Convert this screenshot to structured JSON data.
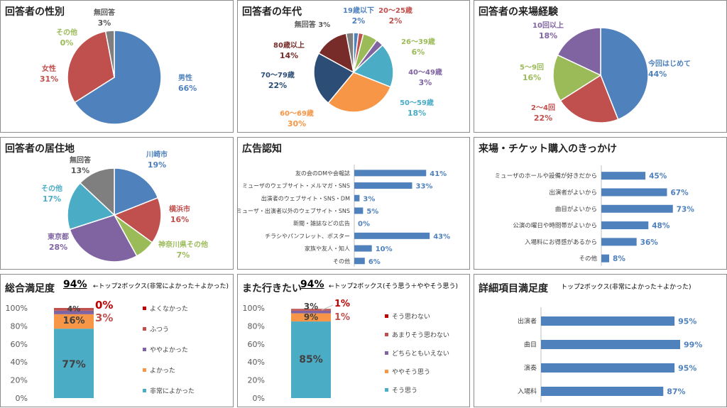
{
  "colors": {
    "blue": "#4f81bd",
    "red": "#c0504d",
    "green": "#9bbb59",
    "purple": "#8064a2",
    "teal": "#4bacc6",
    "orange": "#f79646",
    "navy": "#2c4d75",
    "maroon": "#772c2a",
    "gray": "#7f7f7f",
    "bar": "#4f81bd"
  },
  "titles": {
    "gender": "回答者の性別",
    "age": "回答者の年代",
    "visits": "回答者の来場経験",
    "residence": "回答者の居住地",
    "ad": "広告認知",
    "reason": "来場・チケット購入のきっかけ",
    "overall": "総合満足度",
    "again": "また行きたい",
    "detail": "詳細項目満足度"
  },
  "overall_header": {
    "top2": "94%",
    "note": "←トップ2ボックス(非常によかった＋よかった)"
  },
  "again_header": {
    "top2": "94%",
    "note": "←トップ2ボックス(そう思う＋ややそう思う)"
  },
  "detail_header": {
    "note": "トップ2ボックス(非常によかった＋よかった)"
  },
  "chart_data": [
    {
      "id": "gender",
      "type": "pie",
      "labels": [
        "男性",
        "女性",
        "その他",
        "無回答"
      ],
      "values": [
        66,
        31,
        0,
        3
      ],
      "value_labels": [
        "66%",
        "31%",
        "0%",
        "3%"
      ],
      "colors": [
        "blue",
        "red",
        "green",
        "gray"
      ]
    },
    {
      "id": "age",
      "type": "pie",
      "labels": [
        "19歳以下",
        "20～25歳",
        "26～39歳",
        "40～49歳",
        "50～59歳",
        "60～69歳",
        "70～79歳",
        "80歳以上",
        "無回答"
      ],
      "values": [
        2,
        2,
        6,
        3,
        18,
        30,
        22,
        14,
        3
      ],
      "value_labels": [
        "2%",
        "2%",
        "6%",
        "3%",
        "18%",
        "30%",
        "22%",
        "14%",
        "3%"
      ],
      "colors": [
        "blue",
        "red",
        "green",
        "purple",
        "teal",
        "orange",
        "navy",
        "maroon",
        "gray"
      ]
    },
    {
      "id": "visits",
      "type": "pie",
      "labels": [
        "今回はじめて",
        "2～4回",
        "5～9回",
        "10回以上"
      ],
      "values": [
        44,
        22,
        16,
        18
      ],
      "value_labels": [
        "44%",
        "22%",
        "16%",
        "18%"
      ],
      "colors": [
        "blue",
        "red",
        "green",
        "purple"
      ]
    },
    {
      "id": "residence",
      "type": "pie",
      "labels": [
        "川崎市",
        "横浜市",
        "神奈川県その他",
        "東京都",
        "その他",
        "無回答"
      ],
      "values": [
        19,
        16,
        7,
        28,
        17,
        13
      ],
      "value_labels": [
        "19%",
        "16%",
        "7%",
        "28%",
        "17%",
        "13%"
      ],
      "colors": [
        "blue",
        "red",
        "green",
        "purple",
        "teal",
        "gray"
      ]
    },
    {
      "id": "ad",
      "type": "bar",
      "orientation": "horizontal",
      "categories": [
        "友の会のDMや会報誌",
        "ミューザのウェブサイト・メルマガ・SNS",
        "出演者のウェブサイト・SNS・DM",
        "ミューザ・出演者以外のウェブサイト・SNS",
        "新聞・雑誌などの広告",
        "チラシやパンフレット、ポスター",
        "家族や友人・知人",
        "その他"
      ],
      "values": [
        41,
        33,
        3,
        5,
        0,
        43,
        10,
        6
      ],
      "value_labels": [
        "41%",
        "33%",
        "3%",
        "5%",
        "0%",
        "43%",
        "10%",
        "6%"
      ]
    },
    {
      "id": "reason",
      "type": "bar",
      "orientation": "horizontal",
      "categories": [
        "ミューザのホールや設備が好きだから",
        "出演者がよいから",
        "曲目がよいから",
        "公演の曜日や時間帯がよいから",
        "入場料にお得感があるから",
        "その他"
      ],
      "values": [
        45,
        67,
        73,
        48,
        36,
        8
      ],
      "value_labels": [
        "45%",
        "67%",
        "73%",
        "48%",
        "36%",
        "8%"
      ]
    },
    {
      "id": "overall",
      "type": "stacked_bar",
      "yticks": [
        "0%",
        "20%",
        "40%",
        "60%",
        "80%",
        "100%"
      ],
      "series": [
        {
          "name": "非常によかった",
          "value": 77,
          "label": "77%",
          "color": "teal"
        },
        {
          "name": "よかった",
          "value": 16,
          "label": "16%",
          "color": "orange"
        },
        {
          "name": "ややよかった",
          "value": 4,
          "label": "4%",
          "color": "purple"
        },
        {
          "name": "ふつう",
          "value": 3,
          "label": "3%",
          "color": "red"
        },
        {
          "name": "よくなかった",
          "value": 0,
          "label": "0%",
          "color": "red"
        }
      ],
      "legend": [
        "よくなかった",
        "ふつう",
        "ややよかった",
        "よかった",
        "非常によかった"
      ],
      "legend_colors": [
        "#c00000",
        "#c0504d",
        "#8064a2",
        "#f79646",
        "#4bacc6"
      ]
    },
    {
      "id": "again",
      "type": "stacked_bar",
      "yticks": [
        "0%",
        "20%",
        "40%",
        "60%",
        "80%",
        "100%"
      ],
      "series": [
        {
          "name": "そう思う",
          "value": 85,
          "label": "85%",
          "color": "teal"
        },
        {
          "name": "ややそう思う",
          "value": 9,
          "label": "9%",
          "color": "orange"
        },
        {
          "name": "どちらともいえない",
          "value": 3,
          "label": "3%",
          "color": "purple"
        },
        {
          "name": "あまりそう思わない",
          "value": 1,
          "label": "1%",
          "color": "red"
        },
        {
          "name": "そう思わない",
          "value": 1,
          "label": "1%",
          "color": "red"
        }
      ],
      "legend": [
        "そう思わない",
        "あまりそう思わない",
        "どちらともいえない",
        "ややそう思う",
        "そう思う"
      ],
      "legend_colors": [
        "#c00000",
        "#c0504d",
        "#8064a2",
        "#f79646",
        "#4bacc6"
      ]
    },
    {
      "id": "detail",
      "type": "bar",
      "orientation": "horizontal",
      "categories": [
        "出演者",
        "曲目",
        "演奏",
        "入場料"
      ],
      "values": [
        95,
        99,
        95,
        87
      ],
      "value_labels": [
        "95%",
        "99%",
        "95%",
        "87%"
      ]
    }
  ]
}
